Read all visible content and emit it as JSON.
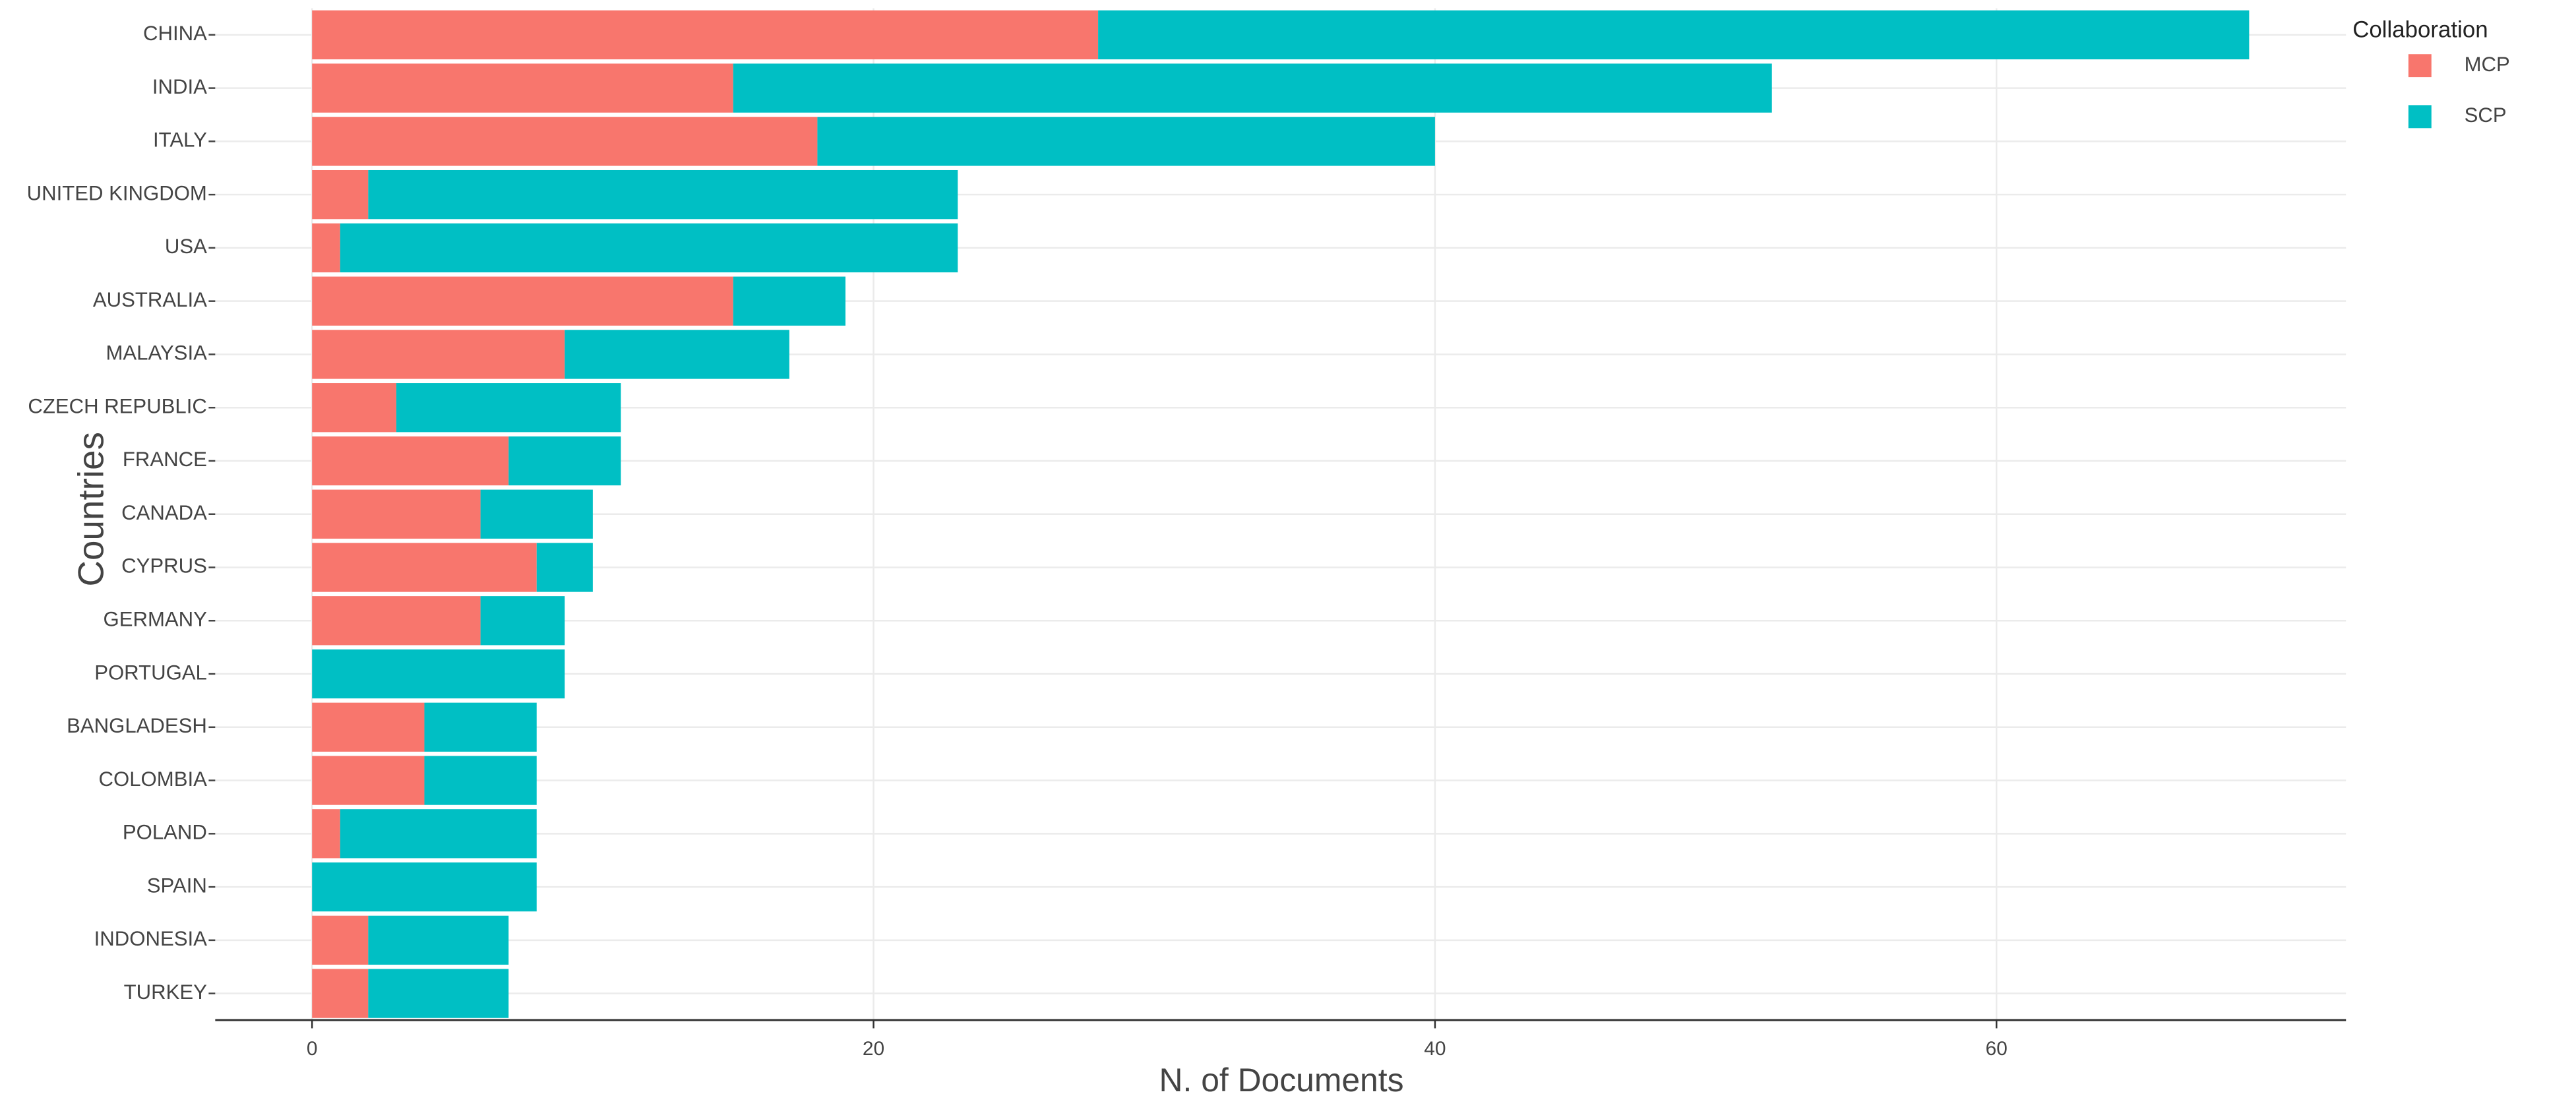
{
  "chart_data": {
    "type": "stacked-bar-horizontal",
    "x_label": "N. of Documents",
    "y_label": "Countries",
    "legend_title": "Collaboration",
    "legend_position": "right",
    "categories": [
      "CHINA",
      "INDIA",
      "ITALY",
      "UNITED KINGDOM",
      "USA",
      "AUSTRALIA",
      "MALAYSIA",
      "CZECH REPUBLIC",
      "FRANCE",
      "CANADA",
      "CYPRUS",
      "GERMANY",
      "PORTUGAL",
      "BANGLADESH",
      "COLOMBIA",
      "POLAND",
      "SPAIN",
      "INDONESIA",
      "TURKEY"
    ],
    "series": [
      {
        "name": "MCP",
        "color": "#F8766D",
        "values": [
          28,
          15,
          18,
          2,
          1,
          15,
          9,
          3,
          7,
          6,
          8,
          6,
          0,
          4,
          4,
          1,
          0,
          2,
          2
        ]
      },
      {
        "name": "SCP",
        "color": "#00BFC4",
        "values": [
          41,
          37,
          22,
          21,
          22,
          4,
          8,
          8,
          4,
          4,
          2,
          3,
          9,
          4,
          4,
          7,
          8,
          5,
          5
        ]
      }
    ],
    "xlim": [
      -3.45,
      72.45
    ],
    "xticks": [
      0,
      20,
      40,
      60
    ],
    "grid": true
  }
}
